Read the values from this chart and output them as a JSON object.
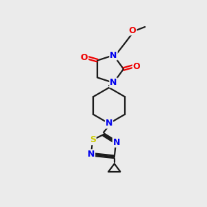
{
  "background_color": "#ebebeb",
  "bond_color": "#1a1a1a",
  "atom_colors": {
    "N": "#0000ee",
    "O": "#ee0000",
    "S": "#cccc00",
    "C": "#1a1a1a"
  },
  "figsize": [
    3.0,
    3.0
  ],
  "dpi": 100,
  "lw": 1.6
}
